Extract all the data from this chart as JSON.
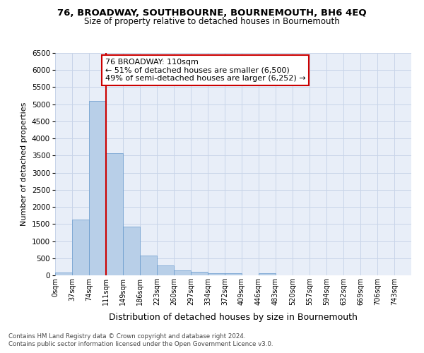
{
  "title1": "76, BROADWAY, SOUTHBOURNE, BOURNEMOUTH, BH6 4EQ",
  "title2": "Size of property relative to detached houses in Bournemouth",
  "xlabel": "Distribution of detached houses by size in Bournemouth",
  "ylabel": "Number of detached properties",
  "bar_labels": [
    "0sqm",
    "37sqm",
    "74sqm",
    "111sqm",
    "149sqm",
    "186sqm",
    "223sqm",
    "260sqm",
    "297sqm",
    "334sqm",
    "372sqm",
    "409sqm",
    "446sqm",
    "483sqm",
    "520sqm",
    "557sqm",
    "594sqm",
    "632sqm",
    "669sqm",
    "706sqm",
    "743sqm"
  ],
  "bar_values": [
    75,
    1630,
    5090,
    3570,
    1420,
    585,
    290,
    145,
    110,
    65,
    65,
    0,
    65,
    0,
    0,
    0,
    0,
    0,
    0,
    0,
    0
  ],
  "bar_color": "#b8cfe8",
  "bar_edge_color": "#6699cc",
  "vline_x_index": 3,
  "vline_color": "#cc0000",
  "annotation_line1": "76 BROADWAY: 110sqm",
  "annotation_line2": "← 51% of detached houses are smaller (6,500)",
  "annotation_line3": "49% of semi-detached houses are larger (6,252) →",
  "annotation_box_color": "#ffffff",
  "annotation_box_edge": "#cc0000",
  "ylim": [
    0,
    6500
  ],
  "yticks": [
    0,
    500,
    1000,
    1500,
    2000,
    2500,
    3000,
    3500,
    4000,
    4500,
    5000,
    5500,
    6000,
    6500
  ],
  "grid_color": "#c8d4e8",
  "background_color": "#e8eef8",
  "footnote1": "Contains HM Land Registry data © Crown copyright and database right 2024.",
  "footnote2": "Contains public sector information licensed under the Open Government Licence v3.0."
}
